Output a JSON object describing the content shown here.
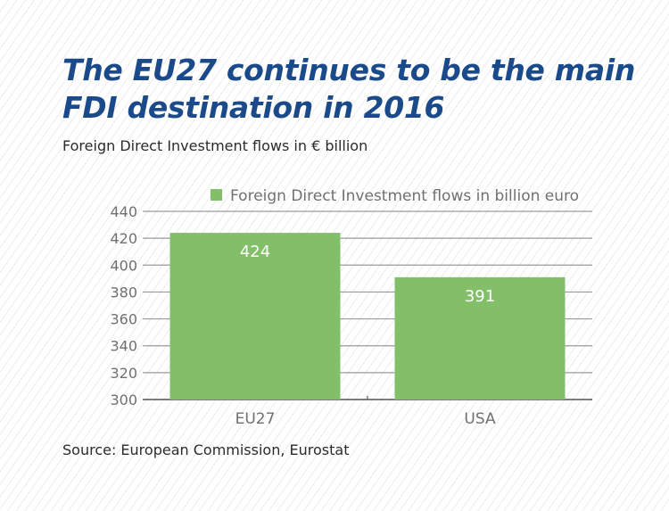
{
  "title_lines": [
    "The EU27 continues to be the main",
    "FDI destination in 2016"
  ],
  "subtitle": "Foreign Direct Investment flows in € billion",
  "source": "Source: European Commission, Eurostat",
  "colors": {
    "title": "#1a4a8a",
    "bar": "#82bf68",
    "bar_label": "#ffffff",
    "axis_text": "#707070",
    "grid": "#9a9a9a"
  },
  "chart_data": {
    "type": "bar",
    "title": "",
    "xlabel": "",
    "ylabel": "",
    "categories": [
      "EU27",
      "USA"
    ],
    "series": [
      {
        "name": "Foreign Direct Investment flows in billion euro",
        "values": [
          424,
          391
        ]
      }
    ],
    "data_labels": [
      "424",
      "391"
    ],
    "ylim": [
      300,
      440
    ],
    "yticks": [
      300,
      320,
      340,
      360,
      380,
      400,
      420,
      440
    ],
    "grid": true,
    "legend_position": "top"
  }
}
